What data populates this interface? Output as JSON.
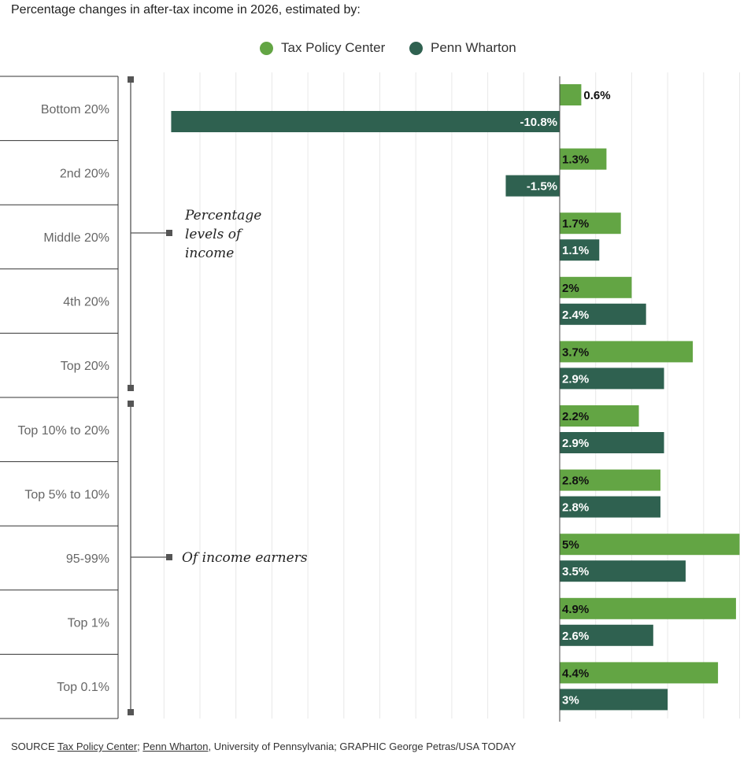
{
  "chart_data": {
    "type": "bar",
    "orientation": "horizontal",
    "title": "Percentage changes in after-tax income in 2026, estimated by:",
    "categories": [
      "Bottom 20%",
      "2nd 20%",
      "Middle 20%",
      "4th 20%",
      "Top 20%",
      "Top 10% to 20%",
      "Top 5% to 10%",
      "95-99%",
      "Top 1%",
      "Top 0.1%"
    ],
    "series": [
      {
        "name": "Tax Policy Center",
        "color": "#63a544",
        "values": [
          0.6,
          1.3,
          1.7,
          2.0,
          3.7,
          2.2,
          2.8,
          5.0,
          4.9,
          4.4
        ],
        "labels": [
          "0.6%",
          "1.3%",
          "1.7%",
          "2%",
          "3.7%",
          "2.2%",
          "2.8%",
          "5%",
          "4.9%",
          "4.4%"
        ]
      },
      {
        "name": "Penn Wharton",
        "color": "#2f6150",
        "values": [
          -10.8,
          -1.5,
          1.1,
          2.4,
          2.9,
          2.9,
          2.8,
          3.5,
          2.6,
          3.0
        ],
        "labels": [
          "-10.8%",
          "-1.5%",
          "1.1%",
          "2.4%",
          "2.9%",
          "2.9%",
          "2.8%",
          "3.5%",
          "2.6%",
          "3%"
        ]
      }
    ],
    "xlim": [
      -12,
      5
    ],
    "grid": true,
    "legend_position": "top-center",
    "annotations": [
      {
        "text": "Percentage levels of income",
        "groups": "Bottom 20% – Top 20%"
      },
      {
        "text": "Of income earners",
        "groups": "Top 10% to 20% – Top 0.1%"
      }
    ]
  },
  "annotation_lines": [
    "Percentage",
    "levels of",
    "income"
  ],
  "annotation_earners": "Of income earners",
  "source": {
    "prefix": "SOURCE ",
    "link1": "Tax Policy Center",
    "sep": "; ",
    "link2": "Penn Wharton",
    "suffix": ", University of Pennsylvania; GRAPHIC George Petras/USA TODAY"
  }
}
